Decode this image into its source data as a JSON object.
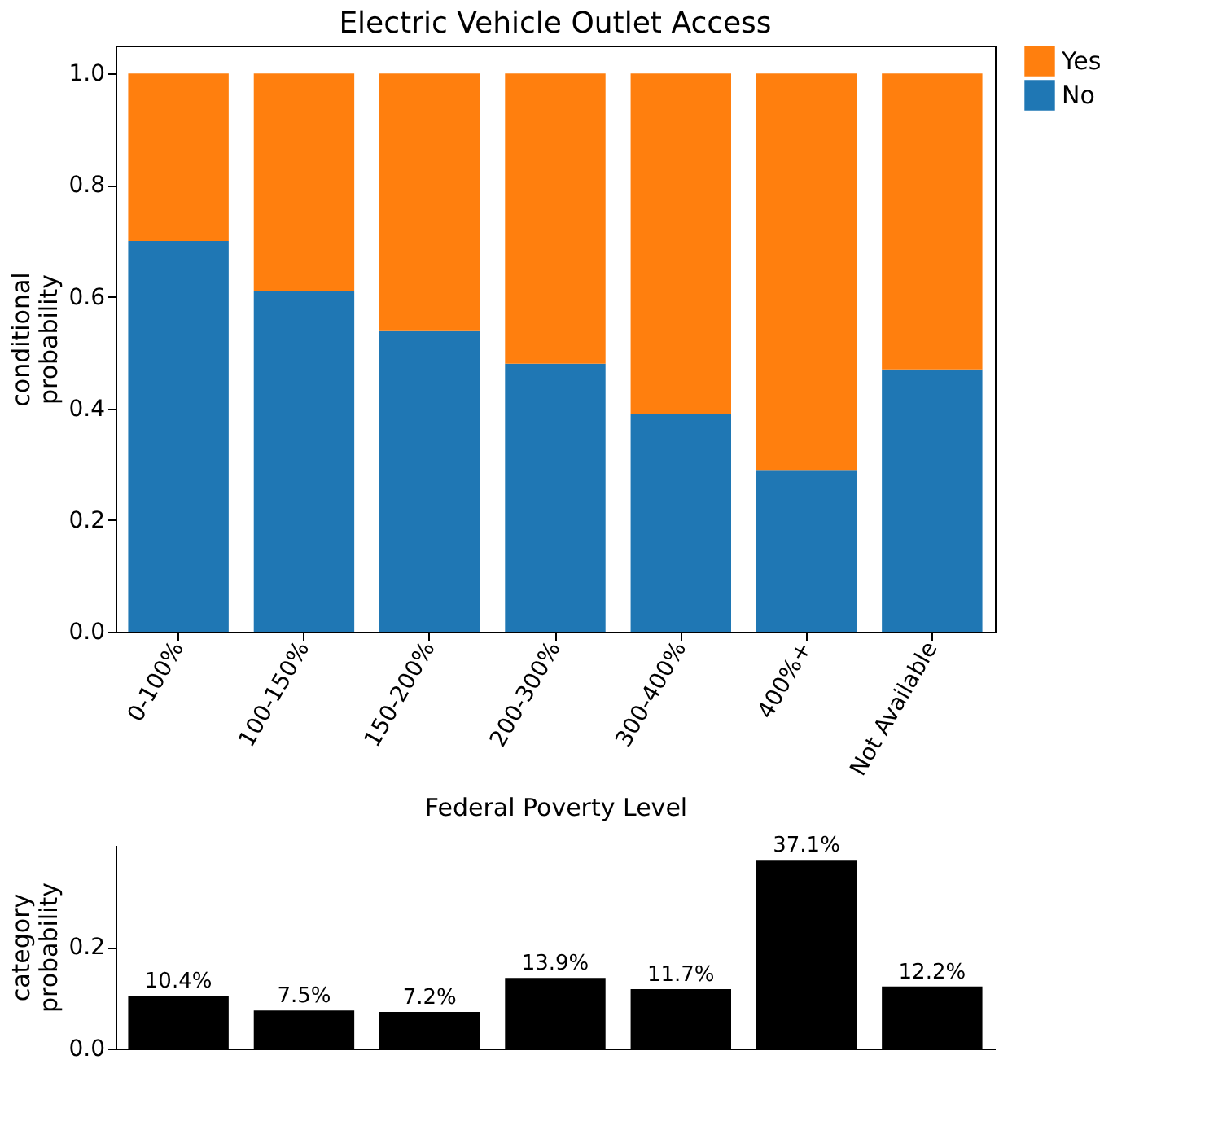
{
  "chart_data": [
    {
      "type": "bar",
      "title": "Electric Vehicle Outlet Access",
      "xlabel": "Federal Poverty Level",
      "ylabel": "conditional probability",
      "stacked": true,
      "legend": "right",
      "grid": false,
      "categories": [
        "0-100%",
        "100-150%",
        "150-200%",
        "200-300%",
        "300-400%",
        "400%+",
        "Not Available"
      ],
      "series": [
        {
          "name": "No",
          "color": "#1f77b4",
          "values": [
            0.7,
            0.61,
            0.54,
            0.48,
            0.39,
            0.29,
            0.47
          ]
        },
        {
          "name": "Yes",
          "color": "#ff7f0e",
          "values": [
            0.3,
            0.39,
            0.46,
            0.52,
            0.61,
            0.71,
            0.53
          ]
        }
      ],
      "ylim": [
        0,
        1.05
      ],
      "yticks": [
        {
          "value": 0,
          "label": "0.0"
        },
        {
          "value": 0.2,
          "label": "0.2"
        },
        {
          "value": 0.4,
          "label": "0.4"
        },
        {
          "value": 0.6,
          "label": "0.6"
        },
        {
          "value": 0.8,
          "label": "0.8"
        },
        {
          "value": 1,
          "label": "1.0"
        }
      ]
    },
    {
      "type": "bar",
      "ylabel": "category probability",
      "grid": false,
      "legend": false,
      "categories": [
        null,
        null,
        null,
        null,
        null,
        null,
        null
      ],
      "values": [
        0.104,
        0.075,
        0.072,
        0.139,
        0.117,
        0.371,
        0.122
      ],
      "color": "#000000",
      "value_labels": [
        "10.4%",
        "7.5%",
        "7.2%",
        "13.9%",
        "11.7%",
        "37.1%",
        "12.2%"
      ],
      "ylim": [
        0,
        0.4
      ],
      "yticks": [
        {
          "value": 0,
          "label": "0.0"
        },
        {
          "value": 0.2,
          "label": "0.2"
        }
      ]
    }
  ]
}
